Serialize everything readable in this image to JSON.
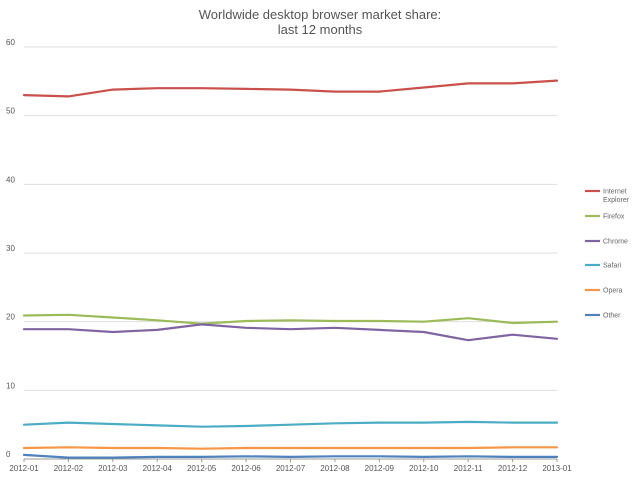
{
  "chart_data": {
    "type": "line",
    "title": "Worldwide desktop browser market share:",
    "subtitle": "last 12 months",
    "xlabel": "",
    "ylabel": "",
    "ylim": [
      0,
      60
    ],
    "yticks": [
      0,
      10,
      20,
      30,
      40,
      50,
      60
    ],
    "grid": true,
    "legend_position": "right",
    "categories": [
      "2012-01",
      "2012-02",
      "2012-03",
      "2012-04",
      "2012-05",
      "2012-06",
      "2012-07",
      "2012-08",
      "2012-09",
      "2012-10",
      "2012-11",
      "2012-12",
      "2013-01"
    ],
    "series": [
      {
        "name": "Internet Explorer",
        "label_lines": [
          "Internet",
          "Explorer"
        ],
        "color": "#c9504b",
        "values": [
          53.0,
          52.8,
          53.8,
          54.0,
          54.0,
          53.9,
          53.8,
          53.5,
          53.5,
          54.1,
          54.7,
          54.7,
          55.1
        ]
      },
      {
        "name": "Firefox",
        "label_lines": [
          "Firefox"
        ],
        "color": "#9bbb59",
        "values": [
          20.9,
          21.0,
          20.6,
          20.2,
          19.7,
          20.1,
          20.2,
          20.1,
          20.1,
          20.0,
          20.5,
          19.8,
          20.0
        ]
      },
      {
        "name": "Chrome",
        "label_lines": [
          "Chrome"
        ],
        "color": "#8064a2",
        "values": [
          18.9,
          18.9,
          18.5,
          18.8,
          19.6,
          19.1,
          18.9,
          19.1,
          18.8,
          18.5,
          17.3,
          18.1,
          17.5
        ]
      },
      {
        "name": "Safari",
        "label_lines": [
          "Safari"
        ],
        "color": "#4bacc6",
        "values": [
          5.0,
          5.3,
          5.1,
          4.9,
          4.7,
          4.8,
          5.0,
          5.2,
          5.3,
          5.3,
          5.4,
          5.3,
          5.3
        ]
      },
      {
        "name": "Opera",
        "label_lines": [
          "Opera"
        ],
        "color": "#f79646",
        "values": [
          1.6,
          1.7,
          1.6,
          1.6,
          1.5,
          1.6,
          1.6,
          1.6,
          1.6,
          1.6,
          1.6,
          1.7,
          1.7
        ]
      },
      {
        "name": "Other",
        "label_lines": [
          "Other"
        ],
        "color": "#4f81bd",
        "values": [
          0.6,
          0.2,
          0.2,
          0.3,
          0.3,
          0.4,
          0.3,
          0.4,
          0.4,
          0.3,
          0.4,
          0.3,
          0.3
        ]
      }
    ]
  }
}
